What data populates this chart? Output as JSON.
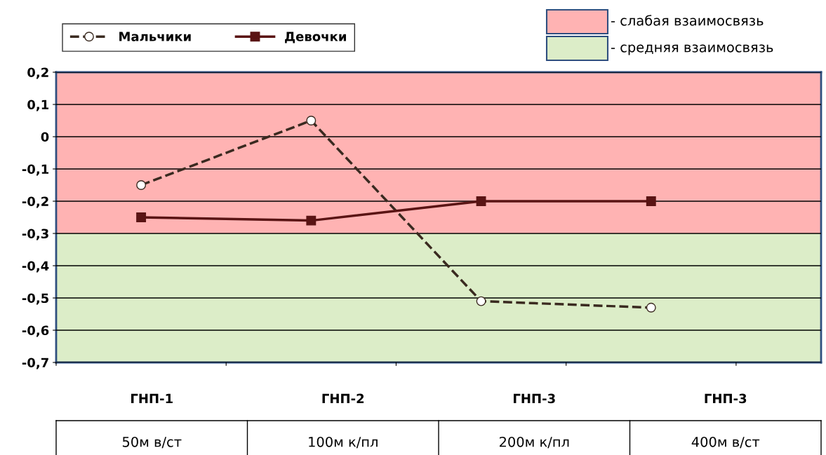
{
  "chart_data": {
    "type": "line",
    "categories": [
      "ГНП-1\n50м в/ст",
      "ГНП-2\n100м к/пл",
      "ГНП-3\n200м к/пл",
      "ГНП-3\n400м в/ст"
    ],
    "series": [
      {
        "name": "Мальчики",
        "color": "#3a2a20",
        "values": [
          -0.15,
          0.05,
          -0.51,
          -0.53
        ],
        "marker": "circle",
        "line_style": "dashed"
      },
      {
        "name": "Девочки",
        "color": "#5a1414",
        "values": [
          -0.25,
          -0.26,
          -0.2,
          -0.2
        ],
        "marker": "square",
        "line_style": "solid"
      }
    ],
    "ylim": [
      -0.7,
      0.2
    ],
    "yticks": [
      {
        "value": -0.7,
        "label": "-0,7"
      },
      {
        "value": -0.6,
        "label": "-0,6"
      },
      {
        "value": -0.5,
        "label": "-0,5"
      },
      {
        "value": -0.4,
        "label": "-0,4"
      },
      {
        "value": -0.3,
        "label": "-0,3"
      },
      {
        "value": -0.2,
        "label": "-0,2"
      },
      {
        "value": -0.1,
        "label": "-0,1"
      },
      0,
      {
        "value": 0.1,
        "label": "0,1"
      },
      {
        "value": 0.2,
        "label": "0,2"
      }
    ],
    "bands": [
      {
        "axis": "y",
        "from": -0.3,
        "to": 0.2,
        "label": "- слабая взаимосвязь",
        "color": "#ffb3b3"
      },
      {
        "axis": "y",
        "from": -0.7,
        "to": -0.3,
        "label": "- средняя взаимосвязь",
        "color": "#dcedc8"
      }
    ],
    "grid": "y",
    "legend": "top left"
  }
}
